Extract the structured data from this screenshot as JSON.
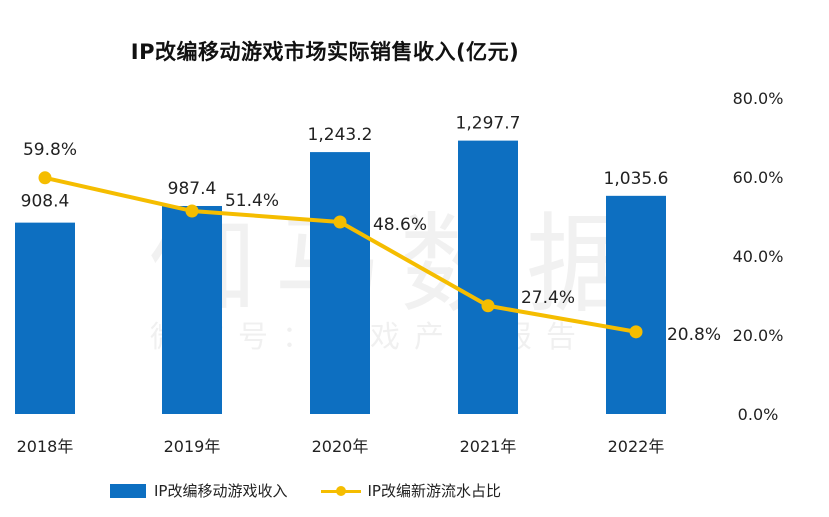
{
  "chart_data": {
    "type": "bar",
    "title": "IP改编移动游戏市场实际销售收入(亿元)",
    "categories": [
      "2018年",
      "2019年",
      "2020年",
      "2021年",
      "2022年"
    ],
    "series": [
      {
        "name": "IP改编移动游戏收入",
        "type": "bar",
        "axis": "left",
        "values": [
          908.4,
          987.4,
          1243.2,
          1297.7,
          1035.6
        ],
        "labels": [
          "908.4",
          "987.4",
          "1,243.2",
          "1,297.7",
          "1,035.6"
        ],
        "color": "#0D6FC1"
      },
      {
        "name": "IP改编新游流水占比",
        "type": "line",
        "axis": "right",
        "values": [
          59.8,
          51.4,
          48.6,
          27.4,
          20.8
        ],
        "labels": [
          "59.8%",
          "51.4%",
          "48.6%",
          "27.4%",
          "20.8%"
        ],
        "color": "#F5BD00"
      }
    ],
    "y_left_range": [
      0,
      1500
    ],
    "y_right_range": [
      0,
      80
    ],
    "y_right_ticks": [
      "0.0%",
      "20.0%",
      "40.0%",
      "60.0%",
      "80.0%"
    ],
    "grid": false,
    "legend_position": "bottom"
  },
  "watermark": {
    "main": "伽马数据",
    "sub": "微信号：游戏产业报告"
  }
}
